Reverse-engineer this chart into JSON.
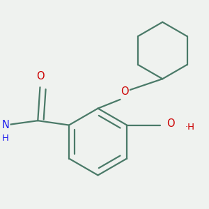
{
  "background_color": "#eff2ef",
  "bond_color": "#4a7a68",
  "bond_width": 1.6,
  "atom_colors": {
    "O": "#cc0000",
    "N": "#1a1aee",
    "C": "#4a7a68"
  },
  "font_size_atoms": 10.5,
  "font_size_sub": 9.5
}
